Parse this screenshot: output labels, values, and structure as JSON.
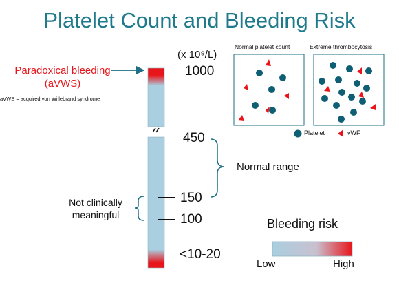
{
  "title": "Platelet Count and Bleeding Risk",
  "unit_label": "(x 10⁹/L)",
  "scale_ticks": {
    "t1000": "1000",
    "t450": "450",
    "t150": "150",
    "t100": "100",
    "tlow": "<10-20"
  },
  "paradoxical": {
    "label_line1": "Paradoxical bleeding",
    "label_line2": "(aVWS)",
    "note": "aVWS = acquired von Willebrand syndrome"
  },
  "normal_range_label": "Normal range",
  "not_clinically": {
    "line1": "Not clinically",
    "line2": "meaningful"
  },
  "panels": {
    "normal_title": "Normal platelet count",
    "extreme_title": "Extreme thrombocytosis"
  },
  "legend": {
    "platelet": "Platelet",
    "vwf": "vWF"
  },
  "bleeding_risk": {
    "title": "Bleeding risk",
    "low": "Low",
    "high": "High"
  },
  "colors": {
    "title": "#1f7a8c",
    "bar_blue": "#a9cfe0",
    "danger_red": "#e8151b",
    "platelet_teal": "#0e5f74",
    "arrow_navy": "#1f6f86"
  }
}
